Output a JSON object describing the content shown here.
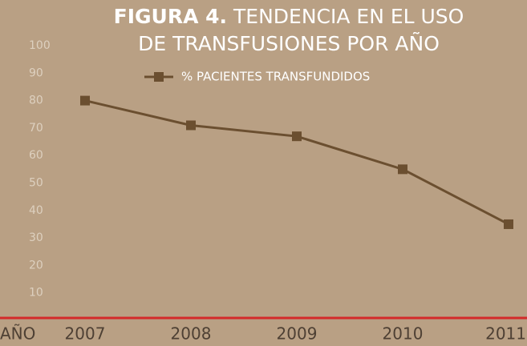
{
  "chart_data": {
    "type": "line",
    "title": [
      "FIGURA 4.",
      "TENDENCIA EN EL USO",
      "DE TRANSFUSIONES POR AÑO"
    ],
    "x_label": "AÑO",
    "categories": [
      "2007",
      "2008",
      "2009",
      "2010",
      "2011"
    ],
    "series": [
      {
        "name": "% PACIENTES TRANSFUNDIDOS",
        "color": "#6b4f30",
        "values": [
          80,
          71,
          67,
          55,
          35
        ]
      }
    ],
    "ylim": [
      0,
      100
    ],
    "yticks": [
      10,
      20,
      30,
      40,
      50,
      60,
      70,
      80,
      90,
      100
    ],
    "axis_color": "#d42a2a",
    "legend": "top"
  }
}
